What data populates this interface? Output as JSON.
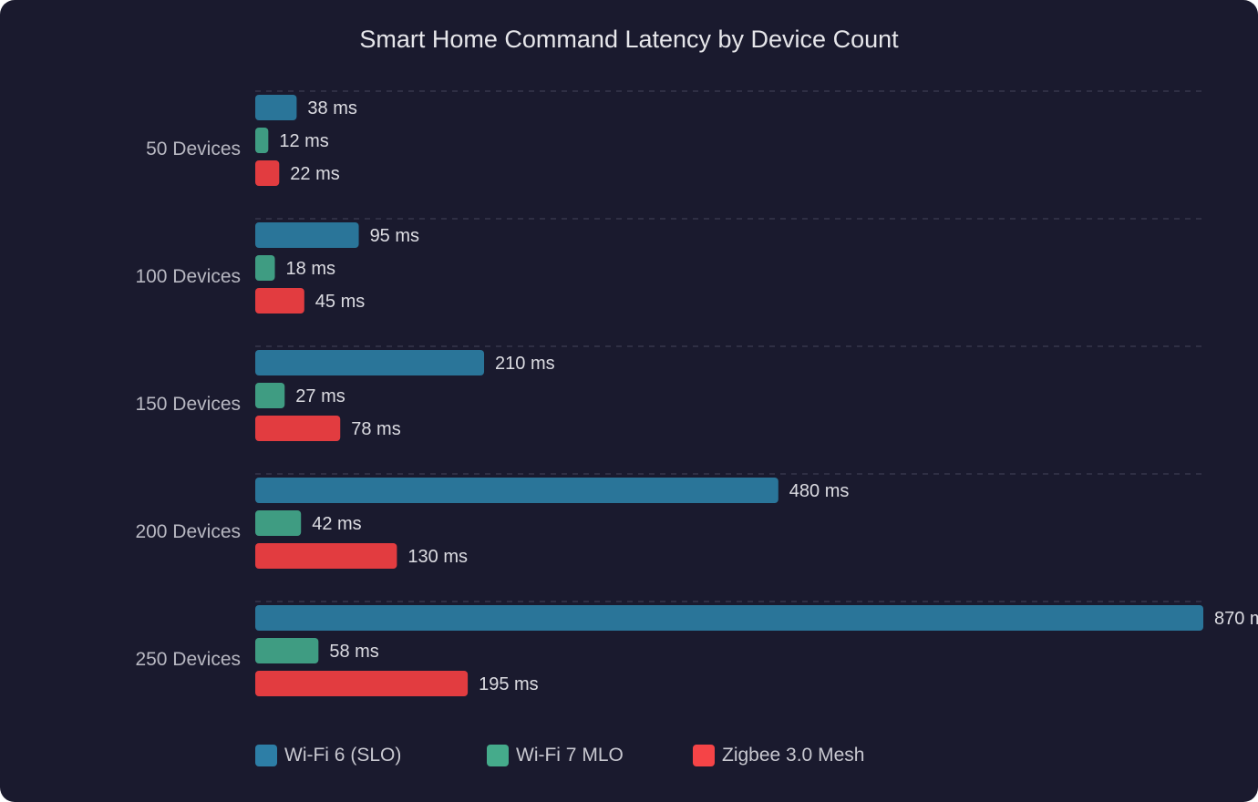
{
  "chart_data": {
    "type": "bar",
    "orientation": "horizontal",
    "title": "Smart Home Command Latency by Device Count",
    "categories": [
      "50 Devices",
      "100 Devices",
      "150 Devices",
      "200 Devices",
      "250 Devices"
    ],
    "series": [
      {
        "name": "Wi-Fi 6 (SLO)",
        "color": "#2a7599",
        "values": [
          38,
          95,
          210,
          480,
          870
        ]
      },
      {
        "name": "Wi-Fi 7 MLO",
        "color": "#3f9c82",
        "values": [
          12,
          18,
          27,
          42,
          58
        ]
      },
      {
        "name": "Zigbee 3.0 Mesh",
        "color": "#e23c40",
        "values": [
          22,
          45,
          78,
          130,
          195
        ]
      }
    ],
    "value_suffix": " ms",
    "xlim": [
      0,
      870
    ],
    "grid": "dashed category separators",
    "legend": "bottom-left"
  }
}
